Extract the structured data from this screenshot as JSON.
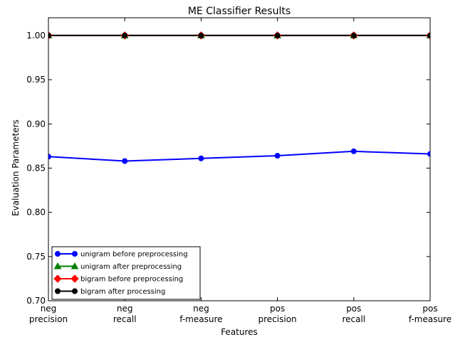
{
  "chart_data": {
    "type": "line",
    "title": "ME Classifier Results",
    "xlabel": "Features",
    "ylabel": "Evaluation Parameters",
    "categories": [
      [
        "neg",
        "precision"
      ],
      [
        "neg",
        "recall"
      ],
      [
        "neg",
        "f-measure"
      ],
      [
        "pos",
        "precision"
      ],
      [
        "pos",
        "recall"
      ],
      [
        "pos",
        "f-measure"
      ]
    ],
    "ylim": [
      0.7,
      1.02
    ],
    "yticks": [
      "0.70",
      "0.75",
      "0.80",
      "0.85",
      "0.90",
      "0.95",
      "1.00"
    ],
    "ytick_values": [
      0.7,
      0.75,
      0.8,
      0.85,
      0.9,
      0.95,
      1.0
    ],
    "grid": false,
    "legend_position": "lower-left",
    "series": [
      {
        "name": "unigram before preprocessing",
        "color": "#0000ff",
        "marker": "circle",
        "values": [
          0.863,
          0.858,
          0.861,
          0.864,
          0.869,
          0.866
        ]
      },
      {
        "name": "unigram after preprocessing",
        "color": "#008000",
        "marker": "triangle",
        "values": [
          1.0,
          1.0,
          1.0,
          1.0,
          1.0,
          1.0
        ]
      },
      {
        "name": "bigram before preprocessing",
        "color": "#ff0000",
        "marker": "diamond",
        "values": [
          1.0,
          1.0,
          1.0,
          1.0,
          1.0,
          1.0
        ]
      },
      {
        "name": "bigram after processing",
        "color": "#000000",
        "marker": "circle",
        "values": [
          1.0,
          1.0,
          1.0,
          1.0,
          1.0,
          1.0
        ]
      }
    ]
  }
}
